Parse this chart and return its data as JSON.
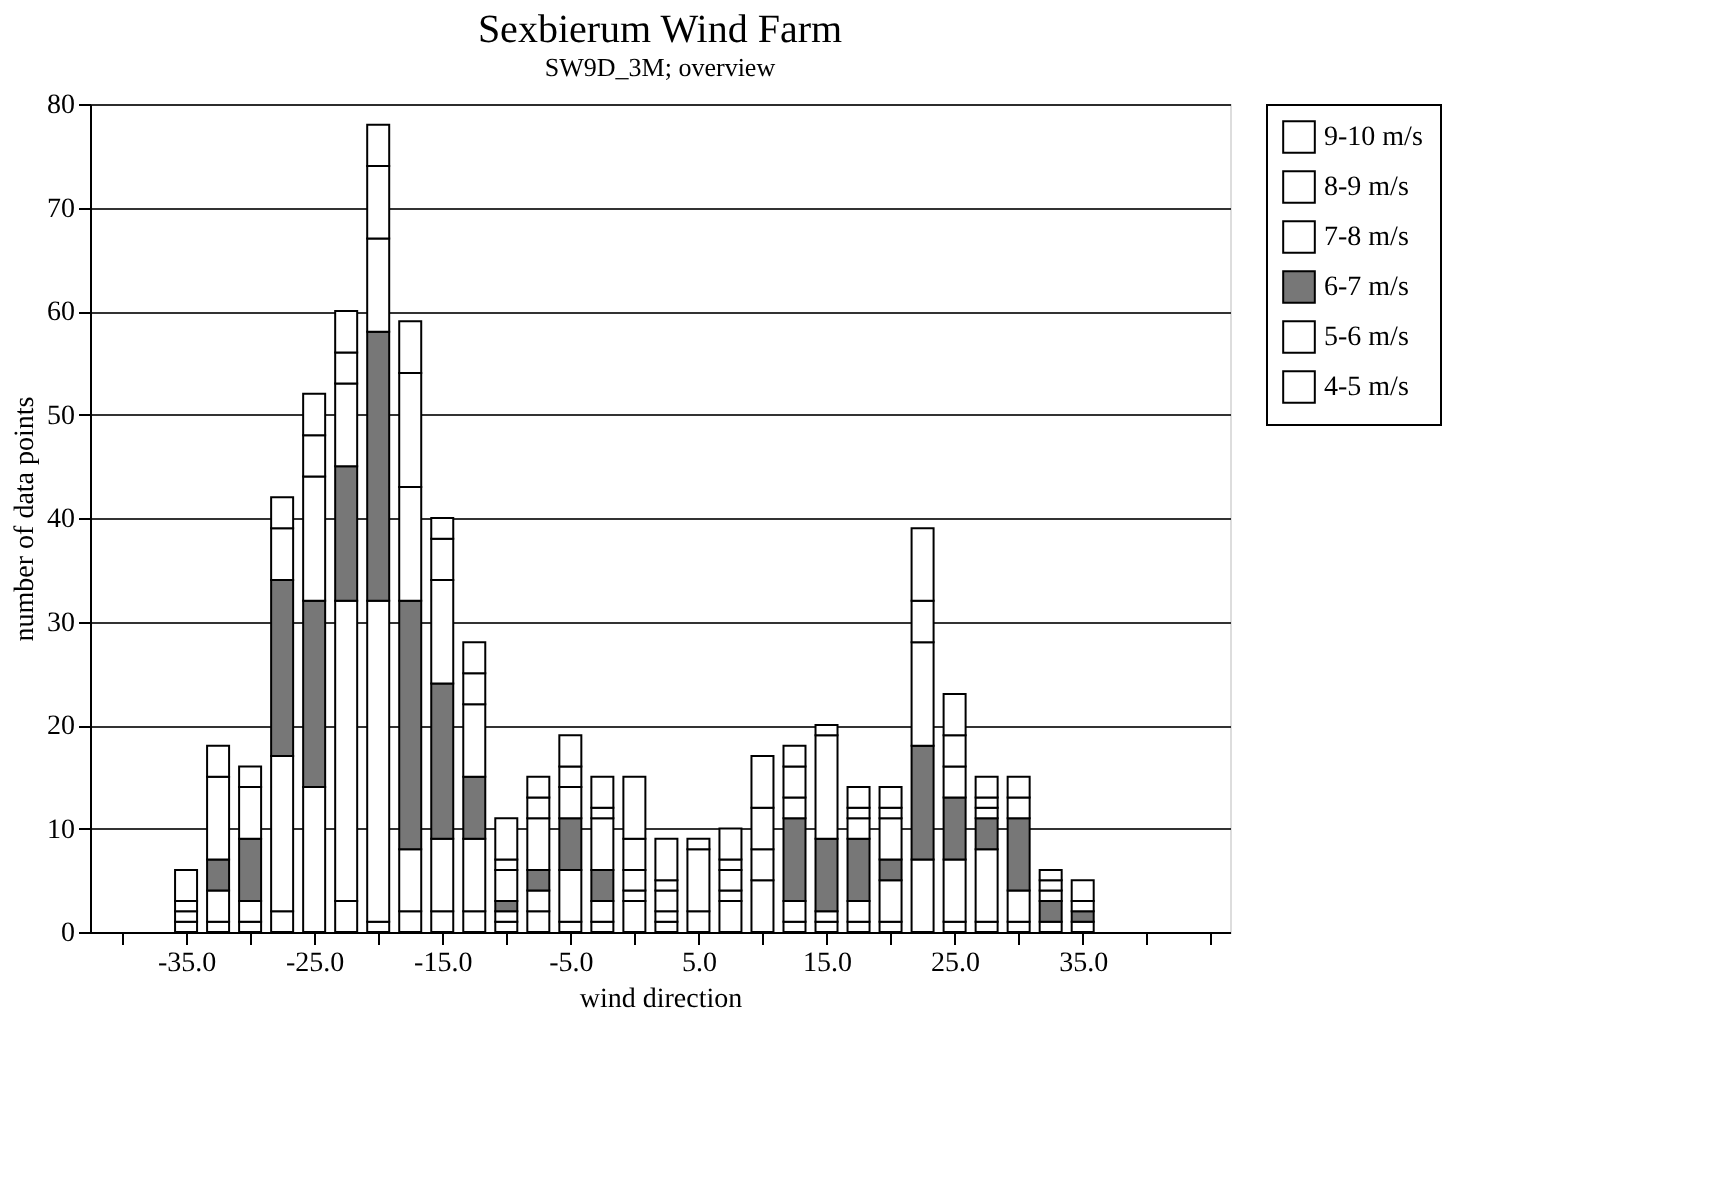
{
  "chart_data": {
    "type": "bar",
    "stacked": true,
    "title": "Sexbierum Wind Farm",
    "subtitle": "SW9D_3M; overview",
    "xlabel": "wind direction",
    "ylabel": "number of data points",
    "x": [
      -35,
      -32.5,
      -30,
      -27.5,
      -25,
      -22.5,
      -20,
      -17.5,
      -15,
      -12.5,
      -10,
      -7.5,
      -5,
      -2.5,
      0,
      2.5,
      5,
      7.5,
      10,
      12.5,
      15,
      17.5,
      20,
      22.5,
      25,
      27.5,
      30,
      32.5,
      35
    ],
    "series": [
      {
        "name": "4-5 m/s",
        "color": "#ffffff",
        "values": [
          1,
          1,
          1,
          2,
          0,
          3,
          1,
          2,
          2,
          2,
          1,
          2,
          1,
          1,
          3,
          1,
          2,
          3,
          5,
          1,
          1,
          1,
          1,
          0,
          1,
          1,
          1,
          0,
          0
        ]
      },
      {
        "name": "5-6 m/s",
        "color": "#ffffff",
        "values": [
          1,
          3,
          2,
          15,
          14,
          29,
          31,
          6,
          7,
          7,
          1,
          2,
          5,
          2,
          1,
          1,
          0,
          1,
          3,
          2,
          1,
          2,
          4,
          7,
          6,
          7,
          3,
          1,
          1
        ]
      },
      {
        "name": "6-7 m/s",
        "color": "#777777",
        "values": [
          0,
          3,
          6,
          17,
          18,
          13,
          26,
          24,
          15,
          6,
          1,
          2,
          5,
          3,
          0,
          0,
          0,
          0,
          0,
          8,
          7,
          6,
          2,
          11,
          6,
          3,
          7,
          2,
          1
        ]
      },
      {
        "name": "7-8 m/s",
        "color": "#ffffff",
        "values": [
          1,
          8,
          5,
          5,
          12,
          8,
          9,
          11,
          10,
          7,
          3,
          5,
          3,
          5,
          2,
          2,
          6,
          2,
          4,
          2,
          10,
          2,
          4,
          10,
          3,
          1,
          2,
          1,
          1
        ]
      },
      {
        "name": "8-9 m/s",
        "color": "#ffffff",
        "values": [
          0,
          3,
          2,
          3,
          4,
          3,
          7,
          11,
          4,
          3,
          1,
          2,
          2,
          1,
          3,
          1,
          1,
          1,
          5,
          3,
          0,
          1,
          1,
          4,
          3,
          1,
          2,
          1,
          2
        ]
      },
      {
        "name": "9-10 m/s",
        "color": "#ffffff",
        "values": [
          3,
          0,
          0,
          0,
          4,
          4,
          4,
          5,
          2,
          3,
          4,
          2,
          3,
          3,
          6,
          4,
          0,
          3,
          0,
          2,
          1,
          2,
          2,
          7,
          4,
          2,
          0,
          1,
          0
        ]
      }
    ],
    "xlim": [
      -42.5,
      46.5
    ],
    "xticks": [
      {
        "value": -40,
        "label": null
      },
      {
        "value": -35,
        "label": "-35.0"
      },
      {
        "value": -30,
        "label": null
      },
      {
        "value": -25,
        "label": "-25.0"
      },
      {
        "value": -20,
        "label": null
      },
      {
        "value": -15,
        "label": "-15.0"
      },
      {
        "value": -10,
        "label": null
      },
      {
        "value": -5,
        "label": "-5.0"
      },
      {
        "value": 0,
        "label": null
      },
      {
        "value": 5,
        "label": "5.0"
      },
      {
        "value": 10,
        "label": null
      },
      {
        "value": 15,
        "label": "15.0"
      },
      {
        "value": 20,
        "label": null
      },
      {
        "value": 25,
        "label": "25.0"
      },
      {
        "value": 30,
        "label": null
      },
      {
        "value": 35,
        "label": "35.0"
      },
      {
        "value": 40,
        "label": null
      },
      {
        "value": 45,
        "label": null
      }
    ],
    "ylim": [
      0,
      80
    ],
    "yticks": [
      0,
      10,
      20,
      30,
      40,
      50,
      60,
      70,
      80
    ],
    "grid": "y",
    "legend": "right"
  }
}
